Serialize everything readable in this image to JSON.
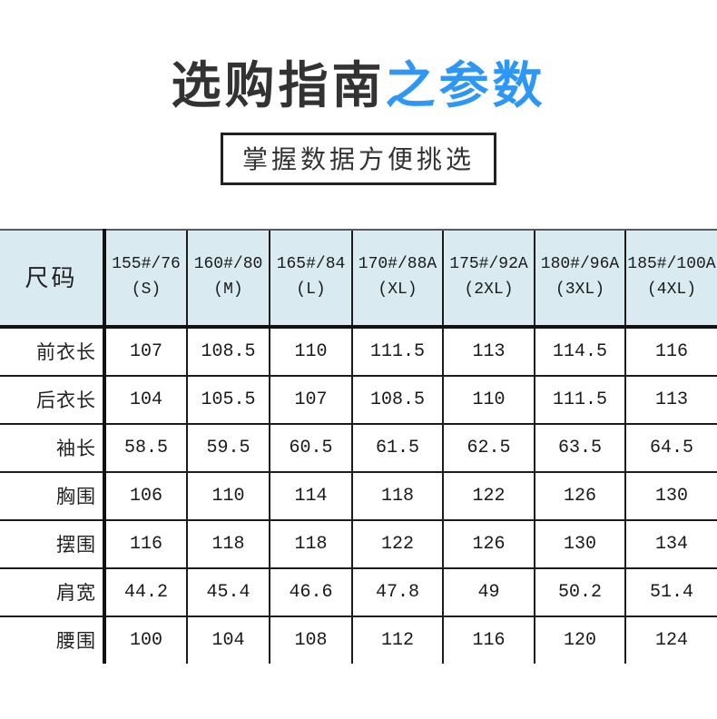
{
  "title": {
    "black_part": "选购指南",
    "blue_part": "之参数"
  },
  "subtitle": "掌握数据方便挑选",
  "table": {
    "corner_label": "尺码",
    "columns": [
      "155#/76\n(S)",
      "160#/80\n(M)",
      "165#/84\n(L)",
      "170#/88A\n(XL)",
      "175#/92A\n(2XL)",
      "180#/96A\n(3XL)",
      "185#/100A\n(4XL)"
    ],
    "rows": [
      {
        "label": "前衣长",
        "values": [
          "107",
          "108.5",
          "110",
          "111.5",
          "113",
          "114.5",
          "116"
        ]
      },
      {
        "label": "后衣长",
        "values": [
          "104",
          "105.5",
          "107",
          "108.5",
          "110",
          "111.5",
          "113"
        ]
      },
      {
        "label": "袖长",
        "values": [
          "58.5",
          "59.5",
          "60.5",
          "61.5",
          "62.5",
          "63.5",
          "64.5"
        ]
      },
      {
        "label": "胸围",
        "values": [
          "106",
          "110",
          "114",
          "118",
          "122",
          "126",
          "130"
        ]
      },
      {
        "label": "摆围",
        "values": [
          "116",
          "118",
          "118",
          "122",
          "126",
          "130",
          "134"
        ]
      },
      {
        "label": "肩宽",
        "values": [
          "44.2",
          "45.4",
          "46.6",
          "47.8",
          "49",
          "50.2",
          "51.4"
        ]
      },
      {
        "label": "腰围",
        "values": [
          "100",
          "104",
          "108",
          "112",
          "116",
          "120",
          "124"
        ]
      }
    ]
  },
  "colors": {
    "title_text": "#333333",
    "title_accent_blue": "#2e97f5",
    "table_header_bg": "#d9eaf0",
    "table_border": "#1c1c1c",
    "subtitle_border": "#222222"
  }
}
